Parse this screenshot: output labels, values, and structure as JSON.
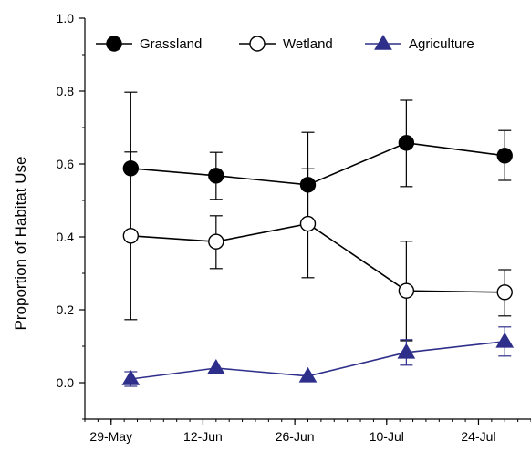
{
  "chart_data": {
    "type": "line",
    "ylabel": "Proportion of Habitat Use",
    "ylim": [
      -0.1,
      1.0
    ],
    "yticks": [
      0.0,
      0.2,
      0.4,
      0.6,
      0.8,
      1.0
    ],
    "ytick_labels": [
      "0.0",
      "0.2",
      "0.4",
      "0.6",
      "0.8",
      "1.0"
    ],
    "xlim": [
      "2023-05-25",
      "2023-08-01"
    ],
    "xticks": [
      "2023-05-29",
      "2023-06-12",
      "2023-06-26",
      "2023-07-10",
      "2023-07-24"
    ],
    "xtick_labels": [
      "29-May",
      "12-Jun",
      "26-Jun",
      "10-Jul",
      "24-Jul"
    ],
    "legend_position": "top",
    "series": [
      {
        "name": "Grassland",
        "marker": "filled-circle",
        "color": "#000000",
        "x": [
          "2023-06-01",
          "2023-06-14",
          "2023-06-28",
          "2023-07-13",
          "2023-07-28"
        ],
        "y": [
          0.588,
          0.568,
          0.543,
          0.658,
          0.623
        ],
        "err_low": [
          0.583,
          0.503,
          0.437,
          0.538,
          0.555
        ],
        "err_high": [
          0.797,
          0.632,
          0.687,
          0.775,
          0.692
        ]
      },
      {
        "name": "Wetland",
        "marker": "open-circle",
        "color": "#000000",
        "x": [
          "2023-06-01",
          "2023-06-14",
          "2023-06-28",
          "2023-07-13",
          "2023-07-28"
        ],
        "y": [
          0.403,
          0.387,
          0.436,
          0.252,
          0.248
        ],
        "err_low": [
          0.173,
          0.313,
          0.288,
          0.115,
          0.183
        ],
        "err_high": [
          0.633,
          0.458,
          0.587,
          0.388,
          0.31
        ]
      },
      {
        "name": "Agriculture",
        "marker": "filled-triangle",
        "color": "#2e2f8a",
        "x": [
          "2023-06-01",
          "2023-06-14",
          "2023-06-28",
          "2023-07-13",
          "2023-07-28"
        ],
        "y": [
          0.01,
          0.04,
          0.018,
          0.083,
          0.113
        ],
        "err_low": [
          -0.01,
          0.04,
          0.018,
          0.048,
          0.073
        ],
        "err_high": [
          0.03,
          0.04,
          0.018,
          0.118,
          0.153
        ]
      }
    ]
  }
}
